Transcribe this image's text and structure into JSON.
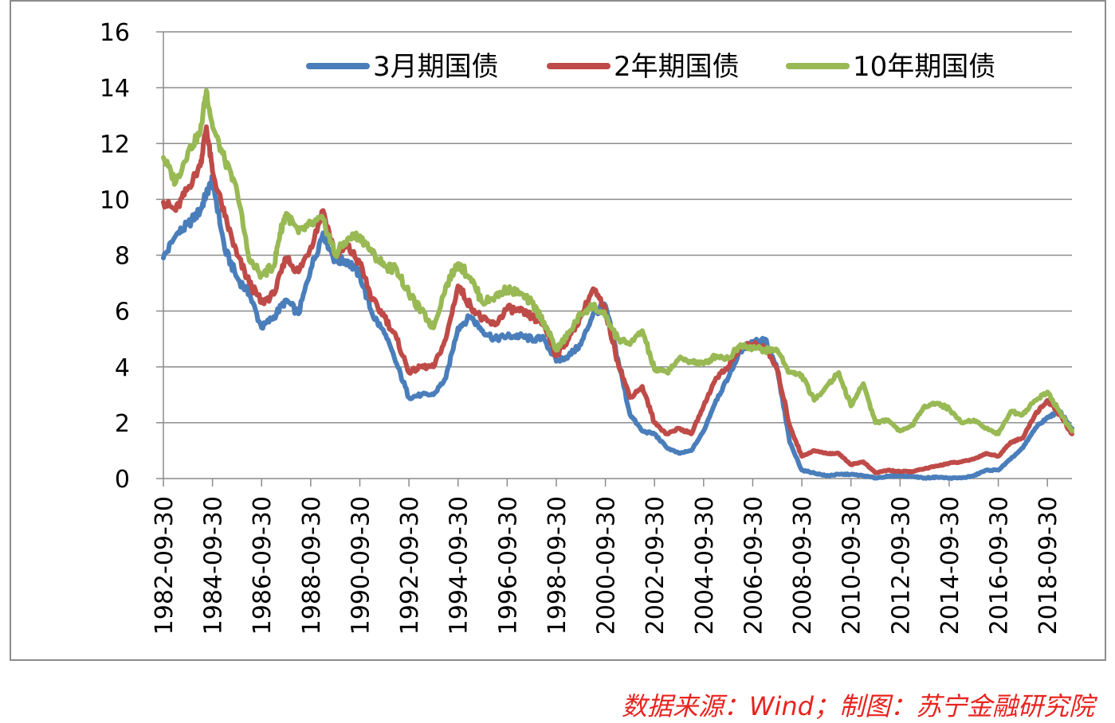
{
  "chart_data": {
    "type": "line",
    "title": "",
    "xlabel": "",
    "ylabel": "",
    "ylim": [
      0,
      16
    ],
    "y_ticks": [
      "0",
      "2",
      "4",
      "6",
      "8",
      "10",
      "12",
      "14",
      "16"
    ],
    "x_ticks": [
      "1982-09-30",
      "1984-09-30",
      "1986-09-30",
      "1988-09-30",
      "1990-09-30",
      "1992-09-30",
      "1994-09-30",
      "1996-09-30",
      "1998-09-30",
      "2000-09-30",
      "2002-09-30",
      "2004-09-30",
      "2006-09-30",
      "2008-09-30",
      "2010-09-30",
      "2012-09-30",
      "2014-09-30",
      "2016-09-30",
      "2018-09-30"
    ],
    "xlim": [
      "1982-09-30",
      "2019-09-30"
    ],
    "grid": "horizontal",
    "legend_position": "top",
    "colors": [
      "#4a7ebb",
      "#be4b48",
      "#98b954"
    ],
    "series": [
      {
        "name": "3月期国债",
        "x": [
          "1982-09-30",
          "1983-03-31",
          "1983-09-30",
          "1984-03-31",
          "1984-06-30",
          "1984-09-30",
          "1985-03-31",
          "1985-09-30",
          "1986-03-31",
          "1986-09-30",
          "1987-03-31",
          "1987-09-30",
          "1988-03-31",
          "1988-09-30",
          "1989-03-31",
          "1989-09-30",
          "1990-03-31",
          "1990-09-30",
          "1991-03-31",
          "1991-09-30",
          "1992-03-31",
          "1992-09-30",
          "1993-03-31",
          "1993-09-30",
          "1994-03-31",
          "1994-09-30",
          "1995-03-31",
          "1995-09-30",
          "1996-03-31",
          "1996-09-30",
          "1997-03-31",
          "1997-09-30",
          "1998-03-31",
          "1998-09-30",
          "1999-03-31",
          "1999-09-30",
          "2000-03-31",
          "2000-09-30",
          "2001-03-31",
          "2001-09-30",
          "2002-03-31",
          "2002-09-30",
          "2003-03-31",
          "2003-09-30",
          "2004-03-31",
          "2004-09-30",
          "2005-03-31",
          "2005-09-30",
          "2006-03-31",
          "2006-09-30",
          "2007-03-31",
          "2007-09-30",
          "2008-03-31",
          "2008-09-30",
          "2009-03-31",
          "2009-09-30",
          "2010-03-31",
          "2010-09-30",
          "2011-03-31",
          "2011-09-30",
          "2012-03-31",
          "2012-09-30",
          "2013-03-31",
          "2013-09-30",
          "2014-03-31",
          "2014-09-30",
          "2015-03-31",
          "2015-09-30",
          "2016-03-31",
          "2016-09-30",
          "2017-03-31",
          "2017-09-30",
          "2018-03-31",
          "2018-09-30",
          "2019-03-31",
          "2019-09-30"
        ],
        "values": [
          7.9,
          8.7,
          9.1,
          9.6,
          10.2,
          10.7,
          8.2,
          7.2,
          6.6,
          5.4,
          5.8,
          6.4,
          5.9,
          7.5,
          8.8,
          7.8,
          7.8,
          7.3,
          5.9,
          5.2,
          4.1,
          2.9,
          3.0,
          3.0,
          3.6,
          5.4,
          5.8,
          5.3,
          5.0,
          5.1,
          5.1,
          5.0,
          5.0,
          4.2,
          4.4,
          4.8,
          5.9,
          6.2,
          4.3,
          2.3,
          1.7,
          1.6,
          1.1,
          0.9,
          1.0,
          1.7,
          2.8,
          3.6,
          4.6,
          4.9,
          5.0,
          3.9,
          1.3,
          0.3,
          0.2,
          0.1,
          0.15,
          0.15,
          0.1,
          0.02,
          0.08,
          0.1,
          0.08,
          0.02,
          0.05,
          0.02,
          0.02,
          0.1,
          0.3,
          0.3,
          0.7,
          1.1,
          1.8,
          2.2,
          2.4,
          1.8
        ]
      },
      {
        "name": "2年期国债",
        "x": [
          "1982-09-30",
          "1983-03-31",
          "1983-09-30",
          "1984-03-31",
          "1984-06-30",
          "1984-09-30",
          "1985-03-31",
          "1985-09-30",
          "1986-03-31",
          "1986-09-30",
          "1987-03-31",
          "1987-09-30",
          "1988-03-31",
          "1988-09-30",
          "1989-03-31",
          "1989-09-30",
          "1990-03-31",
          "1990-09-30",
          "1991-03-31",
          "1991-09-30",
          "1992-03-31",
          "1992-09-30",
          "1993-03-31",
          "1993-09-30",
          "1994-03-31",
          "1994-09-30",
          "1995-03-31",
          "1995-09-30",
          "1996-03-31",
          "1996-09-30",
          "1997-03-31",
          "1997-09-30",
          "1998-03-31",
          "1998-09-30",
          "1999-03-31",
          "1999-09-30",
          "2000-03-31",
          "2000-09-30",
          "2001-03-31",
          "2001-09-30",
          "2002-03-31",
          "2002-09-30",
          "2003-03-31",
          "2003-09-30",
          "2004-03-31",
          "2004-09-30",
          "2005-03-31",
          "2005-09-30",
          "2006-03-31",
          "2006-09-30",
          "2007-03-31",
          "2007-09-30",
          "2008-03-31",
          "2008-09-30",
          "2009-03-31",
          "2009-09-30",
          "2010-03-31",
          "2010-09-30",
          "2011-03-31",
          "2011-09-30",
          "2012-03-31",
          "2012-09-30",
          "2013-03-31",
          "2013-09-30",
          "2014-03-31",
          "2014-09-30",
          "2015-03-31",
          "2015-09-30",
          "2016-03-31",
          "2016-09-30",
          "2017-03-31",
          "2017-09-30",
          "2018-03-31",
          "2018-09-30",
          "2019-03-31",
          "2019-09-30"
        ],
        "values": [
          9.9,
          9.6,
          10.4,
          11.2,
          12.6,
          11.0,
          9.4,
          8.0,
          7.0,
          6.3,
          6.6,
          7.9,
          7.4,
          8.3,
          9.6,
          8.0,
          8.3,
          7.7,
          6.4,
          5.8,
          5.0,
          3.8,
          4.0,
          4.0,
          5.0,
          6.9,
          6.2,
          5.7,
          5.5,
          6.1,
          6.0,
          5.8,
          5.5,
          4.4,
          5.0,
          5.8,
          6.8,
          6.0,
          4.2,
          2.9,
          3.3,
          2.0,
          1.6,
          1.8,
          1.6,
          2.6,
          3.6,
          4.0,
          4.7,
          4.8,
          4.7,
          3.9,
          1.9,
          0.8,
          1.0,
          0.9,
          0.9,
          0.5,
          0.6,
          0.2,
          0.3,
          0.25,
          0.25,
          0.35,
          0.45,
          0.55,
          0.6,
          0.7,
          0.9,
          0.8,
          1.3,
          1.45,
          2.3,
          2.8,
          2.3,
          1.6
        ]
      },
      {
        "name": "10年期国债",
        "x": [
          "1982-09-30",
          "1983-03-31",
          "1983-09-30",
          "1984-03-31",
          "1984-06-30",
          "1984-09-30",
          "1985-03-31",
          "1985-09-30",
          "1986-03-31",
          "1986-09-30",
          "1987-03-31",
          "1987-06-30",
          "1987-09-30",
          "1988-03-31",
          "1988-09-30",
          "1989-03-31",
          "1989-09-30",
          "1990-03-31",
          "1990-09-30",
          "1991-03-31",
          "1991-09-30",
          "1992-03-31",
          "1992-09-30",
          "1993-03-31",
          "1993-09-30",
          "1994-03-31",
          "1994-09-30",
          "1995-03-31",
          "1995-09-30",
          "1996-03-31",
          "1996-09-30",
          "1997-03-31",
          "1997-09-30",
          "1998-03-31",
          "1998-09-30",
          "1999-03-31",
          "1999-09-30",
          "2000-03-31",
          "2000-09-30",
          "2001-03-31",
          "2001-09-30",
          "2002-03-31",
          "2002-09-30",
          "2003-03-31",
          "2003-09-30",
          "2004-03-31",
          "2004-09-30",
          "2005-03-31",
          "2005-09-30",
          "2006-03-31",
          "2006-09-30",
          "2007-03-31",
          "2007-09-30",
          "2008-03-31",
          "2008-09-30",
          "2009-03-31",
          "2009-09-30",
          "2010-03-31",
          "2010-09-30",
          "2011-03-31",
          "2011-09-30",
          "2012-03-31",
          "2012-09-30",
          "2013-03-31",
          "2013-09-30",
          "2014-03-31",
          "2014-09-30",
          "2015-03-31",
          "2015-09-30",
          "2016-03-31",
          "2016-09-30",
          "2017-03-31",
          "2017-09-30",
          "2018-03-31",
          "2018-09-30",
          "2019-03-31",
          "2019-09-30"
        ],
        "values": [
          11.5,
          10.6,
          11.7,
          12.4,
          13.9,
          12.6,
          11.4,
          10.3,
          7.8,
          7.3,
          7.6,
          8.8,
          9.5,
          8.8,
          9.1,
          9.3,
          8.0,
          8.6,
          8.7,
          8.1,
          7.6,
          7.5,
          6.6,
          6.0,
          5.4,
          6.9,
          7.7,
          7.2,
          6.3,
          6.5,
          6.8,
          6.6,
          6.3,
          5.6,
          4.6,
          5.2,
          5.9,
          6.2,
          5.8,
          5.0,
          4.8,
          5.3,
          3.9,
          3.8,
          4.3,
          4.2,
          4.1,
          4.4,
          4.3,
          4.8,
          4.7,
          4.6,
          4.6,
          3.8,
          3.7,
          2.8,
          3.3,
          3.8,
          2.6,
          3.4,
          2.0,
          2.1,
          1.7,
          1.9,
          2.6,
          2.7,
          2.5,
          2.0,
          2.1,
          1.8,
          1.6,
          2.4,
          2.3,
          2.8,
          3.1,
          2.4,
          1.7
        ]
      }
    ]
  },
  "source_note": "数据来源：Wind；制图：苏宁金融研究院"
}
